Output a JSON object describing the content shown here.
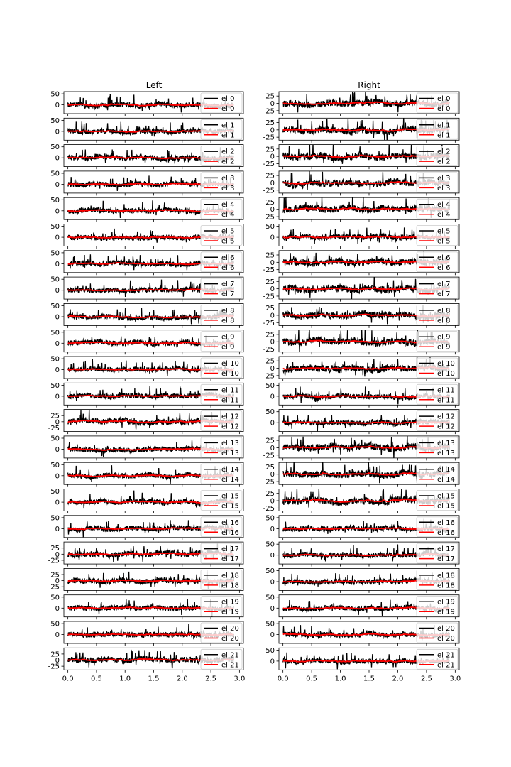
{
  "figure": {
    "columns": [
      {
        "id": "left",
        "title": "Left"
      },
      {
        "id": "right",
        "title": "Right"
      }
    ]
  },
  "colors": {
    "raw": "#000000",
    "smooth": "#ff0000",
    "axes": "#000000",
    "background": "#ffffff"
  },
  "chart_data": [
    {
      "type": "line",
      "title": "Left",
      "x_ticks": [
        0.0,
        0.5,
        1.0,
        1.5,
        2.0,
        2.5,
        3.0
      ],
      "x_tick_labels": [
        "0.0",
        "0.5",
        "1.0",
        "1.5",
        "2.0",
        "2.5",
        "3.0"
      ],
      "xlim": [
        -0.07,
        3.07
      ],
      "legend_placement": "right",
      "panels": [
        {
          "legend": [
            "el 0",
            "el 0"
          ],
          "yticks": [
            0,
            50
          ],
          "ylim": [
            -40,
            60
          ]
        },
        {
          "legend": [
            "el 1",
            "el 1"
          ],
          "yticks": [
            0,
            50
          ],
          "ylim": [
            -40,
            60
          ]
        },
        {
          "legend": [
            "el 2",
            "el 2"
          ],
          "yticks": [
            0,
            50
          ],
          "ylim": [
            -40,
            60
          ]
        },
        {
          "legend": [
            "el 3",
            "el 3"
          ],
          "yticks": [
            0,
            50
          ],
          "ylim": [
            -40,
            60
          ]
        },
        {
          "legend": [
            "el 4",
            "el 4"
          ],
          "yticks": [
            0,
            50
          ],
          "ylim": [
            -40,
            60
          ]
        },
        {
          "legend": [
            "el 5",
            "el 5"
          ],
          "yticks": [
            0,
            50
          ],
          "ylim": [
            -40,
            60
          ]
        },
        {
          "legend": [
            "el 6",
            "el 6"
          ],
          "yticks": [
            0,
            50
          ],
          "ylim": [
            -40,
            60
          ]
        },
        {
          "legend": [
            "el 7",
            "el 7"
          ],
          "yticks": [
            0,
            50
          ],
          "ylim": [
            -40,
            60
          ]
        },
        {
          "legend": [
            "el 8",
            "el 8"
          ],
          "yticks": [
            0,
            50
          ],
          "ylim": [
            -40,
            60
          ]
        },
        {
          "legend": [
            "el 9",
            "el 9"
          ],
          "yticks": [
            0,
            50
          ],
          "ylim": [
            -40,
            60
          ]
        },
        {
          "legend": [
            "el 10",
            "el 10"
          ],
          "yticks": [
            0,
            50
          ],
          "ylim": [
            -40,
            60
          ]
        },
        {
          "legend": [
            "el 11",
            "el 11"
          ],
          "yticks": [
            0,
            50
          ],
          "ylim": [
            -40,
            60
          ]
        },
        {
          "legend": [
            "el 12",
            "el 12"
          ],
          "yticks": [
            -25,
            0,
            25
          ],
          "ylim": [
            -40,
            50
          ]
        },
        {
          "legend": [
            "el 13",
            "el 13"
          ],
          "yticks": [
            0,
            50
          ],
          "ylim": [
            -40,
            60
          ]
        },
        {
          "legend": [
            "el 14",
            "el 14"
          ],
          "yticks": [
            0,
            50
          ],
          "ylim": [
            -40,
            60
          ]
        },
        {
          "legend": [
            "el 15",
            "el 15"
          ],
          "yticks": [
            0,
            50
          ],
          "ylim": [
            -40,
            60
          ]
        },
        {
          "legend": [
            "el 16",
            "el 16"
          ],
          "yticks": [
            0,
            50
          ],
          "ylim": [
            -40,
            60
          ]
        },
        {
          "legend": [
            "el 17",
            "el 17"
          ],
          "yticks": [
            -25,
            0,
            25
          ],
          "ylim": [
            -40,
            50
          ]
        },
        {
          "legend": [
            "el 18",
            "el 18"
          ],
          "yticks": [
            -25,
            0,
            25
          ],
          "ylim": [
            -40,
            50
          ]
        },
        {
          "legend": [
            "el 19",
            "el 19"
          ],
          "yticks": [
            0,
            50
          ],
          "ylim": [
            -40,
            60
          ]
        },
        {
          "legend": [
            "el 20",
            "el 20"
          ],
          "yticks": [
            0,
            50
          ],
          "ylim": [
            -40,
            60
          ]
        },
        {
          "legend": [
            "el 21",
            "el 21"
          ],
          "yticks": [
            -25,
            0,
            25
          ],
          "ylim": [
            -40,
            50
          ]
        }
      ]
    },
    {
      "type": "line",
      "title": "Right",
      "x_ticks": [
        0.0,
        0.5,
        1.0,
        1.5,
        2.0,
        2.5,
        3.0
      ],
      "x_tick_labels": [
        "0.0",
        "0.5",
        "1.0",
        "1.5",
        "2.0",
        "2.5",
        "3.0"
      ],
      "xlim": [
        -0.07,
        3.07
      ],
      "legend_placement": "right",
      "panels": [
        {
          "legend": [
            "el 0",
            "el 0"
          ],
          "yticks": [
            -25,
            0,
            25
          ],
          "ylim": [
            -35,
            40
          ]
        },
        {
          "legend": [
            "el 1",
            "el 1"
          ],
          "yticks": [
            -25,
            0,
            25
          ],
          "ylim": [
            -35,
            40
          ]
        },
        {
          "legend": [
            "el 2",
            "el 2"
          ],
          "yticks": [
            -25,
            0,
            25
          ],
          "ylim": [
            -35,
            40
          ]
        },
        {
          "legend": [
            "el 3",
            "el 3"
          ],
          "yticks": [
            -25,
            0,
            25
          ],
          "ylim": [
            -35,
            40
          ]
        },
        {
          "legend": [
            "el 4",
            "el 4"
          ],
          "yticks": [
            -25,
            0,
            25
          ],
          "ylim": [
            -35,
            40
          ]
        },
        {
          "legend": [
            "el 5",
            "el 5"
          ],
          "yticks": [
            0,
            50
          ],
          "ylim": [
            -40,
            60
          ]
        },
        {
          "legend": [
            "el 6",
            "el 6"
          ],
          "yticks": [
            -25,
            0,
            25
          ],
          "ylim": [
            -35,
            40
          ]
        },
        {
          "legend": [
            "el 7",
            "el 7"
          ],
          "yticks": [
            -25,
            0,
            25
          ],
          "ylim": [
            -35,
            40
          ]
        },
        {
          "legend": [
            "el 8",
            "el 8"
          ],
          "yticks": [
            -25,
            0,
            25
          ],
          "ylim": [
            -35,
            40
          ]
        },
        {
          "legend": [
            "el 9",
            "el 9"
          ],
          "yticks": [
            -25,
            0,
            25
          ],
          "ylim": [
            -35,
            40
          ]
        },
        {
          "legend": [
            "el 10",
            "el 10"
          ],
          "yticks": [
            -25,
            0,
            25
          ],
          "ylim": [
            -35,
            40
          ]
        },
        {
          "legend": [
            "el 11",
            "el 11"
          ],
          "yticks": [
            0,
            50
          ],
          "ylim": [
            -40,
            60
          ]
        },
        {
          "legend": [
            "el 12",
            "el 12"
          ],
          "yticks": [
            0,
            50
          ],
          "ylim": [
            -40,
            60
          ]
        },
        {
          "legend": [
            "el 13",
            "el 13"
          ],
          "yticks": [
            -25,
            0,
            25
          ],
          "ylim": [
            -35,
            40
          ]
        },
        {
          "legend": [
            "el 14",
            "el 14"
          ],
          "yticks": [
            -25,
            0,
            25
          ],
          "ylim": [
            -35,
            40
          ]
        },
        {
          "legend": [
            "el 15",
            "el 15"
          ],
          "yticks": [
            -25,
            0,
            25
          ],
          "ylim": [
            -35,
            40
          ]
        },
        {
          "legend": [
            "el 16",
            "el 16"
          ],
          "yticks": [
            0,
            50
          ],
          "ylim": [
            -40,
            60
          ]
        },
        {
          "legend": [
            "el 17",
            "el 17"
          ],
          "yticks": [
            0,
            50
          ],
          "ylim": [
            -40,
            60
          ]
        },
        {
          "legend": [
            "el 18",
            "el 18"
          ],
          "yticks": [
            0,
            50
          ],
          "ylim": [
            -40,
            60
          ]
        },
        {
          "legend": [
            "el 19",
            "el 19"
          ],
          "yticks": [
            0,
            50
          ],
          "ylim": [
            -40,
            60
          ]
        },
        {
          "legend": [
            "el 20",
            "el 20"
          ],
          "yticks": [
            0,
            50
          ],
          "ylim": [
            -40,
            60
          ]
        },
        {
          "legend": [
            "el 21",
            "el 21"
          ],
          "yticks": [
            0,
            50
          ],
          "ylim": [
            -40,
            60
          ]
        }
      ]
    }
  ]
}
